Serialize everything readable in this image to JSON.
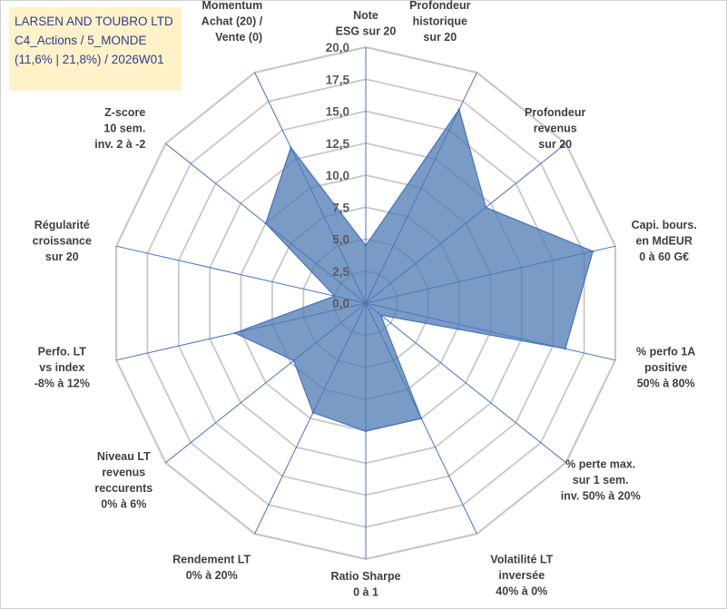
{
  "header": {
    "line1": "LARSEN AND TOUBRO LTD",
    "line2": "C4_Actions / 5_MONDE",
    "line3": "(11,6% | 21,8%) / 2026W01"
  },
  "colors": {
    "fill": "#4e79b2",
    "fill_opacity": "0.75",
    "stroke": "#4472c4",
    "grid": "#c8c8c8",
    "spoke": "#4472c4",
    "header_bg": "#fff2c9",
    "header_text": "#2f3f8f"
  },
  "chart_data": {
    "type": "radar",
    "rmin": 0,
    "rmax": 20,
    "ticks": [
      "0,0",
      "2,5",
      "5,0",
      "7,5",
      "10,0",
      "12,5",
      "15,0",
      "17,5",
      "20,0"
    ],
    "axes": [
      {
        "label": [
          "Note",
          "ESG sur 20"
        ],
        "value": 4.5
      },
      {
        "label": [
          "Profondeur",
          "historique",
          "sur 20"
        ],
        "value": 16.8
      },
      {
        "label": [
          "Profondeur",
          "revenus",
          "sur 20"
        ],
        "value": 12.0
      },
      {
        "label": [
          "Capi. bours.",
          "en MdEUR",
          "0 à 60 G€"
        ],
        "value": 18.2
      },
      {
        "label": [
          "% perfo 1A",
          "positive",
          "50% à 80%"
        ],
        "value": 16.0
      },
      {
        "label": [
          "% perte max.",
          "sur 1 sem.",
          "inv. 50% à 20%"
        ],
        "value": 1.5
      },
      {
        "label": [
          "Volatilité LT",
          "inversée",
          "40% à 0%"
        ],
        "value": 10.0
      },
      {
        "label": [
          "Ratio Sharpe",
          "0 à 1"
        ],
        "value": 10.0
      },
      {
        "label": [
          "Rendement LT",
          "0% à 20%"
        ],
        "value": 9.5
      },
      {
        "label": [
          "Niveau LT",
          "revenus",
          "reccurents",
          "0% à 6%"
        ],
        "value": 7.2
      },
      {
        "label": [
          "Perfo. LT",
          "vs index",
          "-8% à 12%"
        ],
        "value": 10.5
      },
      {
        "label": [
          "Régularité",
          "croissance",
          "sur 20"
        ],
        "value": 2.5
      },
      {
        "label": [
          "Z-score",
          "10 sem.",
          "inv. 2 à -2"
        ],
        "value": 10.0
      },
      {
        "label": [
          "Momentum",
          "Achat (20) /",
          "Vente (0)"
        ],
        "value": 13.5
      }
    ]
  }
}
